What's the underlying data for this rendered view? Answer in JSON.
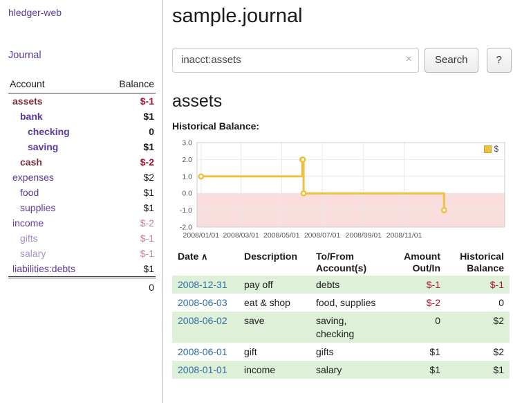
{
  "palette": {
    "link_purple": "#5b3a9b",
    "link_purple_soft": "#a88fc9",
    "maroon": "#7e2d3c",
    "neg_strong": "#a3142e",
    "neg_soft": "#c4848f",
    "date_blue": "#2e6da4",
    "row_green": "#dff0d8",
    "chart_line": "#edc240",
    "chart_neg_fill": "#fadddd"
  },
  "sidebar": {
    "app_title": "hledger-web",
    "nav_journal": "Journal",
    "accounts_table": {
      "col_account": "Account",
      "col_balance": "Balance",
      "rows": [
        {
          "name": "assets",
          "depth": 0,
          "bold": true,
          "name_style": "maroon",
          "balance": "$-1",
          "balance_style": "neg-strong"
        },
        {
          "name": "bank",
          "depth": 1,
          "bold": true,
          "name_style": "purple",
          "balance": "$1",
          "balance_style": "pos"
        },
        {
          "name": "checking",
          "depth": 2,
          "bold": true,
          "name_style": "purple",
          "balance": "0",
          "balance_style": "pos"
        },
        {
          "name": "saving",
          "depth": 2,
          "bold": true,
          "name_style": "purple",
          "balance": "$1",
          "balance_style": "pos"
        },
        {
          "name": "cash",
          "depth": 1,
          "bold": true,
          "name_style": "maroon",
          "balance": "$-2",
          "balance_style": "neg-strong"
        },
        {
          "name": "expenses",
          "depth": 0,
          "bold": false,
          "name_style": "purple",
          "balance": "$2",
          "balance_style": "pos"
        },
        {
          "name": "food",
          "depth": 1,
          "bold": false,
          "name_style": "purple",
          "balance": "$1",
          "balance_style": "pos"
        },
        {
          "name": "supplies",
          "depth": 1,
          "bold": false,
          "name_style": "purple",
          "balance": "$1",
          "balance_style": "pos"
        },
        {
          "name": "income",
          "depth": 0,
          "bold": false,
          "name_style": "purple",
          "balance": "$-2",
          "balance_style": "neg-soft"
        },
        {
          "name": "gifts",
          "depth": 1,
          "bold": false,
          "name_style": "purple-soft",
          "balance": "$-1",
          "balance_style": "neg-soft"
        },
        {
          "name": "salary",
          "depth": 1,
          "bold": false,
          "name_style": "purple-soft",
          "balance": "$-1",
          "balance_style": "neg-soft"
        },
        {
          "name": "liabilities:debts",
          "depth": 0,
          "bold": false,
          "name_style": "purple",
          "balance": "$1",
          "balance_style": "pos"
        }
      ],
      "total": "0"
    }
  },
  "header": {
    "title": "sample.journal"
  },
  "search": {
    "value": "inacct:assets",
    "clear_icon": "×",
    "button_label": "Search",
    "help_label": "?"
  },
  "main": {
    "account_heading": "assets",
    "chart_label": "Historical Balance:"
  },
  "chart_data": {
    "type": "step-line",
    "title": "Historical Balance",
    "series": [
      {
        "name": "$",
        "color": "#edc240",
        "points": [
          [
            "2008-01-01",
            1
          ],
          [
            "2008-06-01",
            2
          ],
          [
            "2008-06-02",
            2
          ],
          [
            "2008-06-03",
            0
          ],
          [
            "2008-12-31",
            -1
          ]
        ]
      }
    ],
    "x_domain": [
      "2007-12-26",
      "2009-04-01"
    ],
    "x_ticks": [
      [
        "2008-01-01",
        "2008/01/01"
      ],
      [
        "2008-03-01",
        "2008/03/01"
      ],
      [
        "2008-05-01",
        "2008/05/01"
      ],
      [
        "2008-07-01",
        "2008/07/01"
      ],
      [
        "2008-09-01",
        "2008/09/01"
      ],
      [
        "2008-11-01",
        "2008/11/01"
      ]
    ],
    "y_ticks": [
      3.0,
      2.0,
      1.0,
      0.0,
      -1.0,
      -2.0
    ],
    "ylim": [
      -2,
      3
    ],
    "grid": true,
    "negative_region_fill": "#fadddd",
    "legend": {
      "label": "$",
      "position": "top-right"
    }
  },
  "register": {
    "sort_icon": "∧",
    "columns": [
      {
        "key": "date",
        "lines": [
          "Date"
        ],
        "align": "left",
        "sort": true
      },
      {
        "key": "description",
        "lines": [
          "Description"
        ],
        "align": "left"
      },
      {
        "key": "accounts",
        "lines": [
          "To/From",
          "Account(s)"
        ],
        "align": "left"
      },
      {
        "key": "amount",
        "lines": [
          "Amount",
          "Out/In"
        ],
        "align": "right"
      },
      {
        "key": "balance",
        "lines": [
          "Historical",
          "Balance"
        ],
        "align": "right"
      }
    ],
    "rows": [
      {
        "date": "2008-12-31",
        "description": "pay off",
        "accounts": "debts",
        "amount": "$-1",
        "amount_neg": true,
        "balance": "$-1",
        "balance_neg": true,
        "shaded": true
      },
      {
        "date": "2008-06-03",
        "description": "eat & shop",
        "accounts": "food, supplies",
        "amount": "$-2",
        "amount_neg": true,
        "balance": "0",
        "balance_neg": false,
        "shaded": false
      },
      {
        "date": "2008-06-02",
        "description": "save",
        "accounts": "saving, checking",
        "amount": "0",
        "amount_neg": false,
        "balance": "$2",
        "balance_neg": false,
        "shaded": true
      },
      {
        "date": "2008-06-01",
        "description": "gift",
        "accounts": "gifts",
        "amount": "$1",
        "amount_neg": false,
        "balance": "$2",
        "balance_neg": false,
        "shaded": false
      },
      {
        "date": "2008-01-01",
        "description": "income",
        "accounts": "salary",
        "amount": "$1",
        "amount_neg": false,
        "balance": "$1",
        "balance_neg": false,
        "shaded": true
      }
    ]
  }
}
